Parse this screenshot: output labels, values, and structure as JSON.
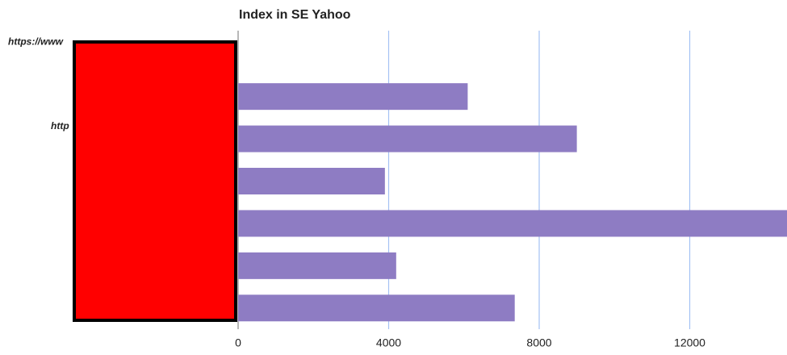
{
  "chart_data": {
    "type": "bar",
    "orientation": "horizontal",
    "title": "Index in SE Yahoo",
    "categories": [
      "https://www",
      null,
      "http",
      null,
      null,
      null,
      null
    ],
    "values": [
      0,
      6100,
      9000,
      3900,
      15000,
      4200,
      7350
    ],
    "color": "#8e7cc3",
    "xlim": [
      0,
      16000
    ],
    "xticks": [
      0,
      4000,
      8000,
      12000
    ],
    "grid": true
  }
}
